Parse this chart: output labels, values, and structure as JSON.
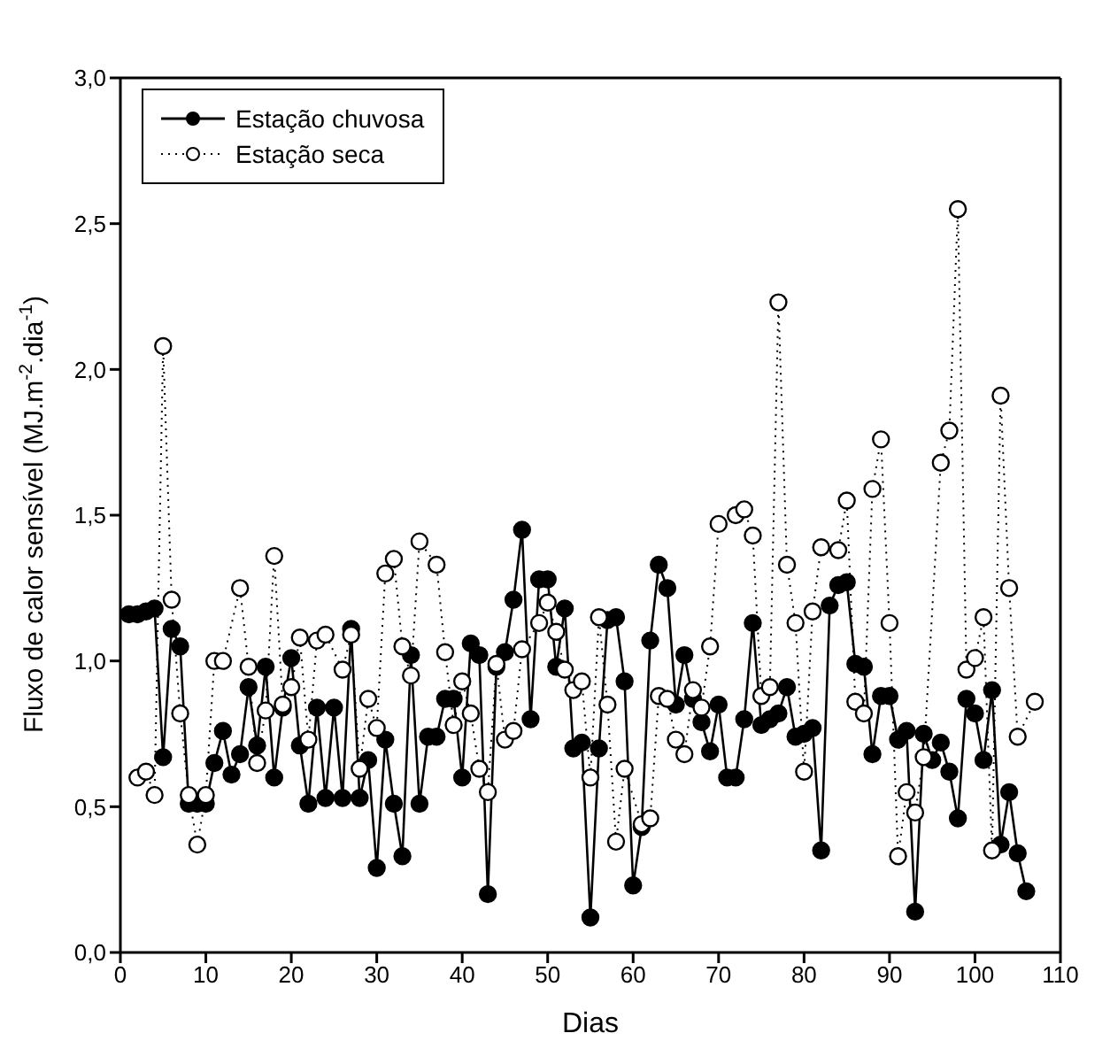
{
  "chart_data": {
    "type": "line",
    "xlabel": "Dias",
    "ylabel": "Fluxo de calor sensível (MJ.m$^{-2}$.dia$^{-1}$)",
    "xlim": [
      0,
      110
    ],
    "xticks": [
      0,
      10,
      20,
      30,
      40,
      50,
      60,
      70,
      80,
      90,
      100,
      110
    ],
    "ylim": [
      0,
      3
    ],
    "yticks": [
      {
        "value": 0,
        "label": "0,0"
      },
      {
        "value": 0.5,
        "label": "0,5"
      },
      {
        "value": 1,
        "label": "1,0"
      },
      {
        "value": 1.5,
        "label": "1,5"
      },
      {
        "value": 2,
        "label": "2,0"
      },
      {
        "value": 2.5,
        "label": "2,5"
      },
      {
        "value": 3,
        "label": "3,0"
      }
    ],
    "legend": "top left",
    "series": [
      {
        "name": "Estação chuvosa",
        "color": "#000000",
        "marker": "circle",
        "line_style": "solid",
        "x": [
          1,
          2,
          3,
          4,
          5,
          6,
          7,
          8,
          9,
          10,
          11,
          12,
          13,
          14,
          15,
          16,
          17,
          18,
          19,
          20,
          21,
          22,
          23,
          24,
          25,
          26,
          27,
          28,
          29,
          30,
          31,
          32,
          33,
          34,
          35,
          36,
          37,
          38,
          39,
          40,
          41,
          42,
          43,
          44,
          45,
          46,
          47,
          48,
          49,
          50,
          51,
          52,
          53,
          54,
          55,
          56,
          57,
          58,
          59,
          60,
          61,
          62,
          63,
          64,
          65,
          66,
          67,
          68,
          69,
          70,
          71,
          72,
          73,
          74,
          75,
          76,
          77,
          78,
          79,
          80,
          81,
          82,
          83,
          84,
          85,
          86,
          87,
          88,
          89,
          90,
          91,
          92,
          93,
          94,
          95,
          96,
          97,
          98,
          99,
          100,
          101,
          102,
          103,
          104,
          105,
          106
        ],
        "values": [
          1.16,
          1.16,
          1.17,
          1.18,
          0.67,
          1.11,
          1.05,
          0.51,
          0.51,
          0.51,
          0.65,
          0.76,
          0.61,
          0.68,
          0.91,
          0.71,
          0.98,
          0.6,
          0.84,
          1.01,
          0.71,
          0.51,
          0.84,
          0.53,
          0.84,
          0.53,
          1.11,
          0.53,
          0.66,
          0.29,
          0.73,
          0.51,
          0.33,
          1.02,
          0.51,
          0.74,
          0.74,
          0.87,
          0.87,
          0.6,
          1.06,
          1.02,
          0.2,
          0.98,
          1.03,
          1.21,
          1.45,
          0.8,
          1.28,
          1.28,
          0.98,
          1.18,
          0.7,
          0.72,
          0.12,
          0.7,
          1.14,
          1.15,
          0.93,
          0.23,
          0.43,
          1.07,
          1.33,
          1.25,
          0.85,
          1.02,
          0.87,
          0.79,
          0.69,
          0.85,
          0.6,
          0.6,
          0.8,
          1.13,
          0.78,
          0.8,
          0.82,
          0.91,
          0.74,
          0.75,
          0.77,
          0.35,
          1.19,
          1.26,
          1.27,
          0.99,
          0.98,
          0.68,
          0.88,
          0.88,
          0.73,
          0.76,
          0.14,
          0.75,
          0.66,
          0.72,
          0.62,
          0.46,
          0.87,
          0.82,
          0.66,
          0.9,
          0.37,
          0.55,
          0.34,
          0.21
        ]
      },
      {
        "name": "Estação seca",
        "color": "#000000",
        "marker": "circle",
        "line_style": "dotted",
        "x": [
          2,
          3,
          4,
          5,
          6,
          7,
          8,
          9,
          10,
          11,
          12,
          14,
          15,
          16,
          17,
          18,
          19,
          20,
          21,
          22,
          23,
          24,
          26,
          27,
          28,
          29,
          30,
          31,
          32,
          33,
          34,
          35,
          37,
          38,
          39,
          40,
          41,
          42,
          43,
          44,
          45,
          46,
          47,
          49,
          50,
          51,
          52,
          53,
          54,
          55,
          56,
          57,
          58,
          59,
          61,
          62,
          63,
          64,
          65,
          66,
          67,
          68,
          69,
          70,
          72,
          73,
          74,
          75,
          76,
          77,
          78,
          79,
          80,
          81,
          82,
          84,
          85,
          86,
          87,
          88,
          89,
          90,
          91,
          92,
          93,
          94,
          96,
          97,
          98,
          99,
          100,
          101,
          102,
          103,
          104,
          105,
          107
        ],
        "values": [
          0.6,
          0.62,
          0.54,
          2.08,
          1.21,
          0.82,
          0.54,
          0.37,
          0.54,
          1.0,
          1.0,
          1.25,
          0.98,
          0.65,
          0.83,
          1.36,
          0.85,
          0.91,
          1.08,
          0.73,
          1.07,
          1.09,
          0.97,
          1.09,
          0.63,
          0.87,
          0.77,
          1.3,
          1.35,
          1.05,
          0.95,
          1.41,
          1.33,
          1.03,
          0.78,
          0.93,
          0.82,
          0.63,
          0.55,
          0.99,
          0.73,
          0.76,
          1.04,
          1.13,
          1.2,
          1.1,
          0.97,
          0.9,
          0.93,
          0.6,
          1.15,
          0.85,
          0.38,
          0.63,
          0.44,
          0.46,
          0.88,
          0.87,
          0.73,
          0.68,
          0.9,
          0.84,
          1.05,
          1.47,
          1.5,
          1.52,
          1.43,
          0.88,
          0.91,
          2.23,
          1.33,
          1.13,
          0.62,
          1.17,
          1.39,
          1.38,
          1.55,
          0.86,
          0.82,
          1.59,
          1.76,
          1.13,
          0.33,
          0.55,
          0.48,
          0.67,
          1.68,
          1.79,
          2.55,
          0.97,
          1.01,
          1.15,
          0.35,
          1.91,
          1.25,
          0.74,
          0.86
        ]
      }
    ]
  }
}
